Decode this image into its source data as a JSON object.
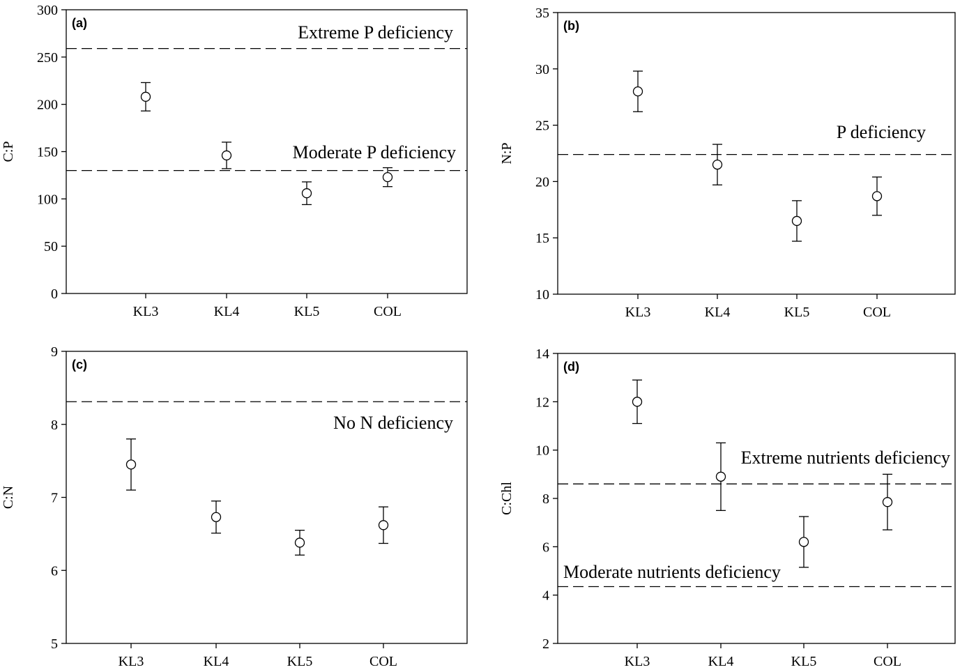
{
  "chart_data": [
    {
      "type": "scatter",
      "panel_label": "(a)",
      "ylabel": "C:P",
      "xlabel": "",
      "categories": [
        "KL3",
        "KL4",
        "KL5",
        "COL"
      ],
      "values": [
        208,
        146,
        106,
        123
      ],
      "errors": [
        15,
        14,
        12,
        10
      ],
      "ylim": [
        0,
        300
      ],
      "yticks": [
        0,
        50,
        100,
        150,
        200,
        250,
        300
      ],
      "reference_lines": [
        {
          "y": 259,
          "label": "Extreme P deficiency"
        },
        {
          "y": 130,
          "label": "Moderate P deficiency"
        }
      ],
      "grid": false
    },
    {
      "type": "scatter",
      "panel_label": "(b)",
      "ylabel": "N:P",
      "xlabel": "",
      "categories": [
        "KL3",
        "KL4",
        "KL5",
        "COL"
      ],
      "values": [
        28.0,
        21.5,
        16.5,
        18.7
      ],
      "errors": [
        1.8,
        1.8,
        1.8,
        1.7
      ],
      "ylim": [
        10,
        35
      ],
      "yticks": [
        10,
        15,
        20,
        25,
        30,
        35
      ],
      "reference_lines": [
        {
          "y": 22.4,
          "label": "P deficiency"
        }
      ],
      "grid": false
    },
    {
      "type": "scatter",
      "panel_label": "(c)",
      "ylabel": "C:N",
      "xlabel": "",
      "categories": [
        "KL3",
        "KL4",
        "KL5",
        "COL"
      ],
      "values": [
        7.45,
        6.73,
        6.38,
        6.62
      ],
      "errors": [
        0.35,
        0.22,
        0.17,
        0.25
      ],
      "ylim": [
        5,
        9
      ],
      "yticks": [
        5,
        6,
        7,
        8,
        9
      ],
      "reference_lines": [
        {
          "y": 8.31,
          "label": "No N deficiency"
        }
      ],
      "grid": false
    },
    {
      "type": "scatter",
      "panel_label": "(d)",
      "ylabel": "C:Chl",
      "xlabel": "",
      "categories": [
        "KL3",
        "KL4",
        "KL5",
        "COL"
      ],
      "values": [
        12.0,
        8.9,
        6.2,
        7.85
      ],
      "errors": [
        0.9,
        1.4,
        1.05,
        1.15
      ],
      "ylim": [
        2,
        14
      ],
      "yticks": [
        2,
        4,
        6,
        8,
        10,
        12,
        14
      ],
      "reference_lines": [
        {
          "y": 8.6,
          "label": "Extreme nutrients deficiency"
        },
        {
          "y": 4.35,
          "label": "Moderate nutrients deficiency"
        }
      ],
      "grid": false
    }
  ]
}
